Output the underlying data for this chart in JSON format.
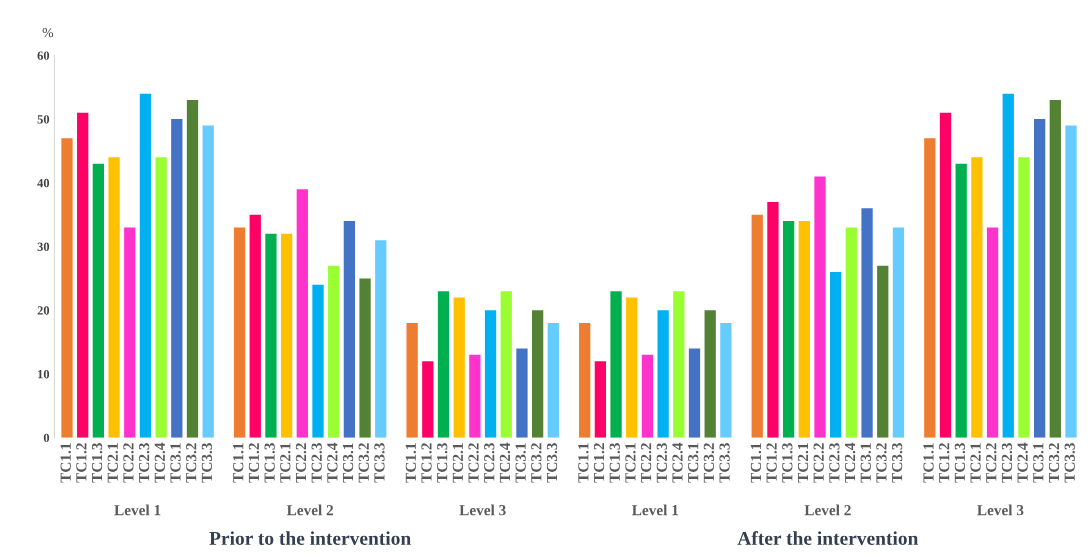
{
  "chart_data": {
    "type": "bar",
    "ylabel": "%",
    "categories": [
      "TC1.1",
      "TC1.2",
      "TC1.3",
      "TC2.1",
      "TC2.2",
      "TC2.3",
      "TC2.4",
      "TC3.1",
      "TC3.2",
      "TC3.3",
      null,
      "TC1.1",
      "TC1.2",
      "TC1.3",
      "TC2.1",
      "TC2.2",
      "TC2.3",
      "TC2.4",
      "TC3.1",
      "TC3.2",
      "TC3.3",
      null,
      "TC1.1",
      "TC1.2",
      "TC1.3",
      "TC2.1",
      "TC2.2",
      "TC2.3",
      "TC2.4",
      "TC3.1",
      "TC3.2",
      "TC3.3",
      null,
      "TC1.1",
      "TC1.2",
      "TC1.3",
      "TC2.1",
      "TC2.2",
      "TC2.3",
      "TC2.4",
      "TC3.1",
      "TC3.2",
      "TC3.3",
      null,
      "TC1.1",
      "TC1.2",
      "TC1.3",
      "TC2.1",
      "TC2.2",
      "TC2.3",
      "TC2.4",
      "TC3.1",
      "TC3.2",
      "TC3.3",
      null,
      "TC1.1",
      "TC1.2",
      "TC1.3",
      "TC2.1",
      "TC2.2",
      "TC2.3",
      "TC2.4",
      "TC3.1",
      "TC3.2",
      "TC3.3"
    ],
    "values": [
      47,
      51,
      43,
      44,
      33,
      54,
      44,
      50,
      53,
      49,
      null,
      33,
      35,
      32,
      32,
      39,
      24,
      27,
      34,
      25,
      31,
      null,
      18,
      12,
      23,
      22,
      13,
      20,
      23,
      14,
      20,
      18,
      null,
      18,
      12,
      23,
      22,
      13,
      20,
      23,
      14,
      20,
      18,
      null,
      35,
      37,
      34,
      34,
      41,
      26,
      33,
      36,
      27,
      33,
      null,
      47,
      51,
      43,
      44,
      33,
      54,
      44,
      50,
      53,
      49
    ],
    "colors": [
      "#ed7d31",
      "#ff0066",
      "#00b050",
      "#ffc000",
      "#ff33cc",
      "#00b0f0",
      "#99ff33",
      "#4472c4",
      "#548235",
      "#66ccff",
      null,
      "#ed7d31",
      "#ff0066",
      "#00b050",
      "#ffc000",
      "#ff33cc",
      "#00b0f0",
      "#99ff33",
      "#4472c4",
      "#548235",
      "#66ccff",
      null,
      "#ed7d31",
      "#ff0066",
      "#00b050",
      "#ffc000",
      "#ff33cc",
      "#00b0f0",
      "#99ff33",
      "#4472c4",
      "#548235",
      "#66ccff",
      null,
      "#ed7d31",
      "#ff0066",
      "#00b050",
      "#ffc000",
      "#ff33cc",
      "#00b0f0",
      "#99ff33",
      "#4472c4",
      "#548235",
      "#66ccff",
      null,
      "#ed7d31",
      "#ff0066",
      "#00b050",
      "#ffc000",
      "#ff33cc",
      "#00b0f0",
      "#99ff33",
      "#4472c4",
      "#548235",
      "#66ccff",
      null,
      "#ed7d31",
      "#ff0066",
      "#00b050",
      "#ffc000",
      "#ff33cc",
      "#00b0f0",
      "#99ff33",
      "#4472c4",
      "#548235",
      "#66ccff"
    ],
    "ylim": [
      0,
      60
    ],
    "yticks": [
      0,
      10,
      20,
      30,
      40,
      50,
      60
    ],
    "grid": false,
    "annotations": [
      "Level 1",
      "Level 2",
      "Level 3",
      "Level 1",
      "Level 2",
      "Level 3",
      "Prior to the intervention",
      "After the intervention"
    ]
  }
}
